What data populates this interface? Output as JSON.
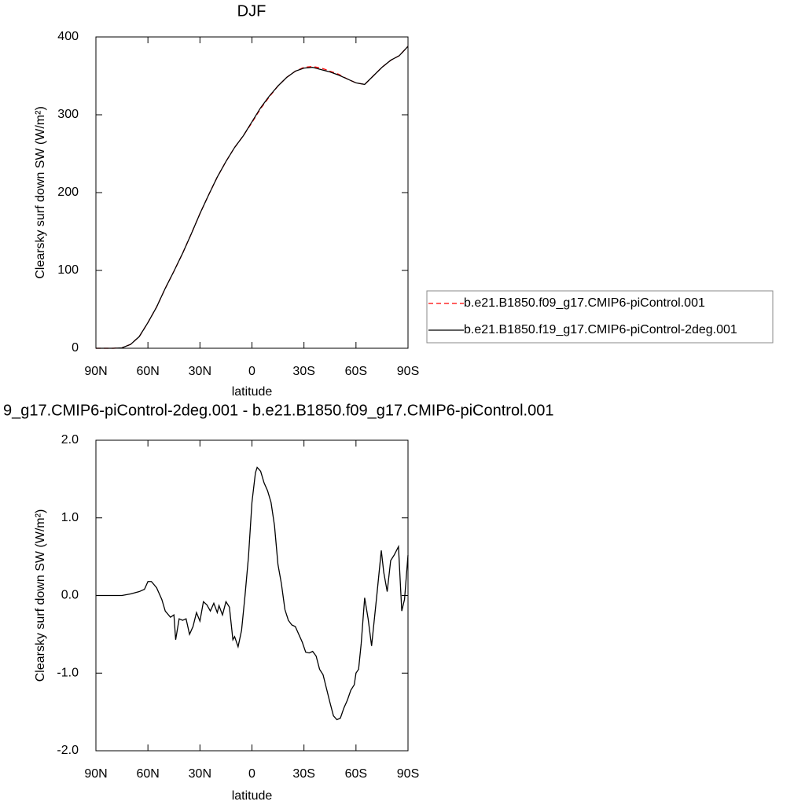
{
  "chart_data": [
    {
      "type": "line",
      "title": "DJF",
      "xlabel": "latitude",
      "ylabel": "Clearsky surf down SW (W/m²)",
      "x": [
        90,
        85,
        80,
        75,
        70,
        65,
        60,
        55,
        50,
        45,
        40,
        35,
        30,
        25,
        20,
        15,
        10,
        5,
        0,
        -5,
        -10,
        -15,
        -20,
        -25,
        -30,
        -35,
        -40,
        -45,
        -50,
        -55,
        -60,
        -65,
        -70,
        -75,
        -80,
        -85,
        -90
      ],
      "series": [
        {
          "name": "b.e21.B1850.f09_g17.CMIP6-piControl.001",
          "color": "#ff0000",
          "dash": "dashed",
          "values": [
            0,
            0,
            0,
            0.5,
            5,
            15,
            33,
            53,
            77,
            99,
            122,
            147,
            173,
            197,
            220,
            240,
            258,
            273,
            290,
            308,
            323,
            337,
            348,
            356,
            361,
            362,
            360,
            356,
            352,
            346,
            341,
            339,
            350,
            361,
            370,
            376,
            388
          ]
        },
        {
          "name": "b.e21.B1850.f19_g17.CMIP6-piControl-2deg.001",
          "color": "#000000",
          "dash": "solid",
          "values": [
            0,
            0,
            0,
            0.5,
            5,
            15,
            33,
            53,
            77,
            99,
            122,
            147,
            173,
            197,
            220,
            240,
            258,
            273,
            291,
            309,
            324,
            337,
            348,
            356,
            360,
            361,
            358,
            355,
            351,
            346,
            341,
            339,
            350,
            361,
            370,
            376,
            388
          ]
        }
      ],
      "xlim": [
        90,
        -90
      ],
      "xticks": [
        {
          "value": 90,
          "label": "90N"
        },
        {
          "value": 60,
          "label": "60N"
        },
        {
          "value": 30,
          "label": "30N"
        },
        {
          "value": 0,
          "label": "0"
        },
        {
          "value": -30,
          "label": "30S"
        },
        {
          "value": -60,
          "label": "60S"
        },
        {
          "value": -90,
          "label": "90S"
        }
      ],
      "ylim": [
        0,
        400
      ],
      "yticks": [
        0,
        100,
        200,
        300,
        400
      ],
      "legend": "right"
    },
    {
      "type": "line",
      "title": "9_g17.CMIP6-piControl-2deg.001 - b.e21.B1850.f09_g17.CMIP6-piControl.001",
      "xlabel": "latitude",
      "ylabel": "Clearsky surf down SW (W/m²)",
      "x": [
        90,
        80,
        75,
        70,
        65,
        62,
        60,
        58,
        55,
        52,
        50,
        47,
        45,
        44,
        42,
        40,
        38,
        36,
        34,
        32,
        30,
        28,
        26,
        24,
        22,
        20,
        19,
        17,
        15,
        13,
        11,
        10,
        8,
        6,
        4,
        2,
        0,
        -2,
        -3,
        -5,
        -7,
        -9,
        -11,
        -13,
        -15,
        -17,
        -19,
        -21,
        -23,
        -25,
        -27,
        -29,
        -31,
        -33,
        -35,
        -37,
        -39,
        -41,
        -43,
        -45,
        -47,
        -49,
        -51,
        -53,
        -55,
        -57,
        -59,
        -60,
        -61.5,
        -63,
        -65,
        -67,
        -69,
        -72,
        -74.6,
        -76,
        -78,
        -80,
        -82,
        -84.5,
        -86.4,
        -88,
        -90
      ],
      "series": [
        {
          "color": "#000000",
          "dash": "solid",
          "values": [
            0,
            0,
            0,
            0.02,
            0.05,
            0.08,
            0.18,
            0.18,
            0.1,
            -0.05,
            -0.2,
            -0.28,
            -0.25,
            -0.57,
            -0.3,
            -0.32,
            -0.3,
            -0.5,
            -0.4,
            -0.22,
            -0.33,
            -0.08,
            -0.12,
            -0.2,
            -0.1,
            -0.22,
            -0.13,
            -0.25,
            -0.08,
            -0.15,
            -0.57,
            -0.53,
            -0.66,
            -0.45,
            0.0,
            0.5,
            1.2,
            1.58,
            1.65,
            1.6,
            1.45,
            1.35,
            1.2,
            0.9,
            0.4,
            0.15,
            -0.18,
            -0.32,
            -0.38,
            -0.4,
            -0.5,
            -0.6,
            -0.73,
            -0.74,
            -0.72,
            -0.78,
            -0.95,
            -1.02,
            -1.2,
            -1.38,
            -1.55,
            -1.6,
            -1.58,
            -1.45,
            -1.35,
            -1.22,
            -1.15,
            -1.0,
            -0.95,
            -0.62,
            -0.03,
            -0.3,
            -0.65,
            0.0,
            0.58,
            0.3,
            0.05,
            0.45,
            0.52,
            0.63,
            -0.2,
            -0.05,
            0.52
          ]
        }
      ],
      "xlim": [
        90,
        -90
      ],
      "xticks": [
        {
          "value": 90,
          "label": "90N"
        },
        {
          "value": 60,
          "label": "60N"
        },
        {
          "value": 30,
          "label": "30N"
        },
        {
          "value": 0,
          "label": "0"
        },
        {
          "value": -30,
          "label": "30S"
        },
        {
          "value": -60,
          "label": "60S"
        },
        {
          "value": -90,
          "label": "90S"
        }
      ],
      "ylim": [
        -2,
        2
      ],
      "yticks": [
        {
          "value": -2,
          "label": "-2.0"
        },
        {
          "value": -1,
          "label": "-1.0"
        },
        {
          "value": 0,
          "label": "0.0"
        },
        {
          "value": 1,
          "label": "1.0"
        },
        {
          "value": 2,
          "label": "2.0"
        }
      ]
    }
  ]
}
